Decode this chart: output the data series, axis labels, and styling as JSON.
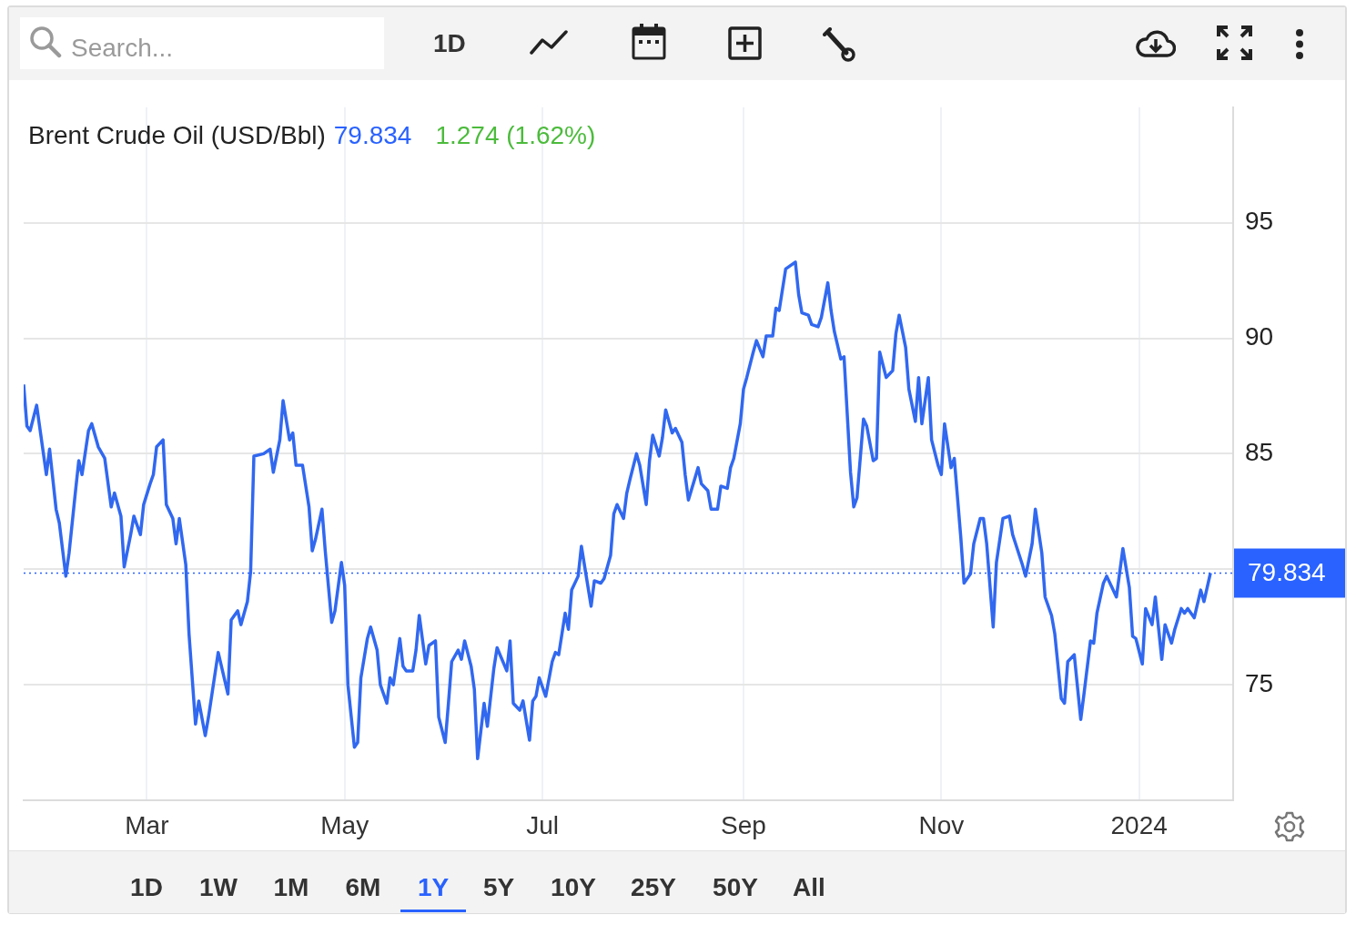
{
  "chart_data": {
    "type": "line",
    "title": "Brent Crude Oil (USD/Bbl)",
    "annotations": [
      "79.834",
      "1.274 (1.62%)",
      "Search...",
      "1D",
      "1D",
      "1W",
      "1M",
      "6M",
      "1Y",
      "5Y",
      "10Y",
      "25Y",
      "50Y",
      "All"
    ],
    "x": [
      "2023-01-22",
      "2023-01-23",
      "2023-01-24",
      "2023-01-26",
      "2023-01-27",
      "2023-01-29",
      "2023-01-30",
      "2023-02-01",
      "2023-02-02",
      "2023-02-04",
      "2023-02-05",
      "2023-02-07",
      "2023-02-08",
      "2023-02-09",
      "2023-02-11",
      "2023-02-12",
      "2023-02-14",
      "2023-02-16",
      "2023-02-18",
      "2023-02-19",
      "2023-02-21",
      "2023-02-22",
      "2023-02-24",
      "2023-02-25",
      "2023-02-27",
      "2023-02-28",
      "2023-03-02",
      "2023-03-03",
      "2023-03-04",
      "2023-03-06",
      "2023-03-07",
      "2023-03-09",
      "2023-03-10",
      "2023-03-11",
      "2023-03-13",
      "2023-03-14",
      "2023-03-16",
      "2023-03-17",
      "2023-03-19",
      "2023-03-20",
      "2023-03-23",
      "2023-03-26",
      "2023-03-27",
      "2023-03-29",
      "2023-03-30",
      "2023-04-01",
      "2023-04-02",
      "2023-04-03",
      "2023-04-06",
      "2023-04-08",
      "2023-04-09",
      "2023-04-11",
      "2023-04-12",
      "2023-04-14",
      "2023-04-15",
      "2023-04-16",
      "2023-04-18",
      "2023-04-20",
      "2023-04-21",
      "2023-04-22",
      "2023-04-24",
      "2023-04-25",
      "2023-04-27",
      "2023-04-28",
      "2023-04-30",
      "2023-05-01",
      "2023-05-02",
      "2023-05-04",
      "2023-05-05",
      "2023-05-06",
      "2023-05-08",
      "2023-05-09",
      "2023-05-11",
      "2023-05-12",
      "2023-05-14",
      "2023-05-15",
      "2023-05-16",
      "2023-05-18",
      "2023-05-19",
      "2023-05-20",
      "2023-05-22",
      "2023-05-23",
      "2023-05-24",
      "2023-05-26",
      "2023-05-27",
      "2023-05-29",
      "2023-05-30",
      "2023-06-01",
      "2023-06-02",
      "2023-06-03",
      "2023-06-05",
      "2023-06-06",
      "2023-06-07",
      "2023-06-09",
      "2023-06-10",
      "2023-06-11",
      "2023-06-13",
      "2023-06-14",
      "2023-06-16",
      "2023-06-17",
      "2023-06-20",
      "2023-06-21",
      "2023-06-22",
      "2023-06-24",
      "2023-06-25",
      "2023-06-27",
      "2023-06-28",
      "2023-06-29",
      "2023-06-30",
      "2023-07-02",
      "2023-07-04",
      "2023-07-05",
      "2023-07-06",
      "2023-07-08",
      "2023-07-09",
      "2023-07-10",
      "2023-07-12",
      "2023-07-13",
      "2023-07-16",
      "2023-07-17",
      "2023-07-19",
      "2023-07-20",
      "2023-07-22",
      "2023-07-23",
      "2023-07-24",
      "2023-07-26",
      "2023-07-27",
      "2023-07-28",
      "2023-07-30",
      "2023-07-31",
      "2023-08-02",
      "2023-08-03",
      "2023-08-04",
      "2023-08-06",
      "2023-08-07",
      "2023-08-08",
      "2023-08-10",
      "2023-08-11",
      "2023-08-13",
      "2023-08-14",
      "2023-08-15",
      "2023-08-18",
      "2023-08-19",
      "2023-08-21",
      "2023-08-22",
      "2023-08-24",
      "2023-08-25",
      "2023-08-27",
      "2023-08-28",
      "2023-08-29",
      "2023-08-31",
      "2023-09-01",
      "2023-09-02",
      "2023-09-04",
      "2023-09-05",
      "2023-09-07",
      "2023-09-08",
      "2023-09-10",
      "2023-09-11",
      "2023-09-12",
      "2023-09-14",
      "2023-09-15",
      "2023-09-17",
      "2023-09-18",
      "2023-09-19",
      "2023-09-21",
      "2023-09-22",
      "2023-09-24",
      "2023-09-25",
      "2023-09-27",
      "2023-09-28",
      "2023-09-29",
      "2023-10-01",
      "2023-10-02",
      "2023-10-04",
      "2023-10-05",
      "2023-10-06",
      "2023-10-08",
      "2023-10-09",
      "2023-10-11",
      "2023-10-12",
      "2023-10-13",
      "2023-10-15",
      "2023-10-17",
      "2023-10-18",
      "2023-10-19",
      "2023-10-21",
      "2023-10-22",
      "2023-10-24",
      "2023-10-25",
      "2023-10-26",
      "2023-10-28",
      "2023-10-29",
      "2023-10-31",
      "2023-11-01",
      "2023-11-02",
      "2023-11-04",
      "2023-11-05",
      "2023-11-07",
      "2023-11-08",
      "2023-11-10",
      "2023-11-11",
      "2023-11-13",
      "2023-11-14",
      "2023-11-15",
      "2023-11-17",
      "2023-11-18",
      "2023-11-20",
      "2023-11-22",
      "2023-11-23",
      "2023-11-26",
      "2023-11-27",
      "2023-11-29",
      "2023-11-30",
      "2023-12-02",
      "2023-12-03",
      "2023-12-05",
      "2023-12-06",
      "2023-12-08",
      "2023-12-09",
      "2023-12-10",
      "2023-12-12",
      "2023-12-14",
      "2023-12-15",
      "2023-12-17",
      "2023-12-18",
      "2023-12-19",
      "2023-12-21",
      "2023-12-22",
      "2023-12-24",
      "2023-12-25",
      "2023-12-27",
      "2023-12-29",
      "2023-12-30",
      "2023-12-31",
      "2024-01-02",
      "2024-01-03",
      "2024-01-05",
      "2024-01-06",
      "2024-01-08",
      "2024-01-09",
      "2024-01-11",
      "2024-01-12",
      "2024-01-14",
      "2024-01-15",
      "2024-01-16",
      "2024-01-18",
      "2024-01-20",
      "2024-01-21",
      "2024-01-23"
    ],
    "values": [
      88.0,
      86.2,
      86.0,
      87.1,
      86.1,
      84.1,
      85.2,
      82.6,
      82.0,
      79.7,
      80.7,
      83.4,
      84.7,
      84.1,
      86.0,
      86.3,
      85.3,
      84.8,
      82.7,
      83.3,
      82.3,
      80.1,
      81.5,
      82.3,
      81.5,
      82.8,
      83.7,
      84.1,
      85.3,
      85.6,
      82.8,
      82.2,
      81.1,
      82.2,
      80.2,
      77.2,
      73.3,
      74.3,
      72.8,
      73.6,
      76.4,
      74.6,
      77.8,
      78.2,
      77.6,
      78.6,
      79.9,
      84.9,
      85.0,
      85.2,
      84.2,
      85.6,
      87.3,
      85.6,
      85.9,
      84.5,
      84.5,
      82.7,
      80.8,
      81.3,
      82.6,
      80.8,
      77.7,
      78.2,
      80.3,
      79.3,
      75.0,
      72.3,
      72.5,
      75.3,
      77.0,
      77.5,
      76.5,
      75.0,
      74.2,
      75.3,
      75.0,
      77.0,
      75.8,
      75.6,
      75.6,
      76.5,
      78.0,
      75.9,
      76.7,
      76.9,
      73.6,
      72.5,
      74.2,
      76.0,
      76.5,
      76.1,
      76.9,
      75.8,
      74.8,
      71.8,
      74.2,
      73.2,
      75.7,
      76.6,
      75.6,
      76.9,
      74.2,
      73.9,
      74.3,
      72.6,
      74.3,
      74.5,
      75.3,
      74.5,
      76.0,
      76.4,
      76.3,
      78.1,
      77.4,
      79.1,
      79.7,
      81.0,
      78.4,
      79.5,
      79.4,
      79.6,
      80.6,
      82.4,
      82.8,
      82.2,
      83.3,
      83.9,
      85.0,
      84.5,
      82.8,
      84.7,
      85.8,
      84.9,
      85.7,
      86.9,
      85.9,
      86.1,
      85.5,
      84.1,
      83.0,
      84.4,
      83.7,
      83.4,
      82.6,
      82.6,
      83.6,
      83.5,
      84.4,
      84.8,
      86.3,
      87.8,
      88.3,
      89.4,
      89.9,
      89.2,
      90.1,
      90.1,
      91.3,
      91.2,
      93.0,
      93.1,
      93.3,
      91.9,
      91.1,
      91.0,
      90.6,
      90.5,
      90.9,
      92.4,
      91.2,
      90.3,
      89.1,
      89.2,
      84.2,
      82.7,
      83.1,
      86.5,
      86.2,
      84.7,
      84.8,
      89.4,
      88.3,
      88.6,
      90.2,
      91.0,
      89.6,
      87.8,
      86.4,
      88.3,
      86.3,
      88.3,
      85.6,
      84.5,
      84.1,
      86.3,
      84.4,
      84.8,
      81.4,
      79.4,
      79.8,
      81.1,
      82.2,
      82.2,
      81.1,
      77.5,
      80.3,
      82.2,
      82.3,
      81.5,
      80.2,
      79.7,
      81.1,
      82.6,
      80.7,
      78.8,
      78.0,
      77.2,
      74.4,
      74.2,
      76.0,
      76.3,
      73.5,
      74.6,
      76.9,
      76.8,
      78.1,
      79.4,
      79.7,
      79.1,
      78.8,
      80.9,
      79.2,
      77.1,
      77.0,
      75.9,
      78.3,
      77.6,
      78.8,
      76.1,
      77.6,
      76.8,
      77.4,
      78.3,
      78.1,
      78.3,
      77.9,
      79.1,
      78.6,
      79.834
    ],
    "color": "#3168f0",
    "xlim": [
      "2023-01-22",
      "2024-01-30"
    ],
    "xticks": [
      {
        "value": "2023-03-01",
        "label": "Mar"
      },
      {
        "value": "2023-05-01",
        "label": "May"
      },
      {
        "value": "2023-07-01",
        "label": "Jul"
      },
      {
        "value": "2023-09-01",
        "label": "Sep"
      },
      {
        "value": "2023-11-01",
        "label": "Nov"
      },
      {
        "value": "2024-01-01",
        "label": "2024"
      }
    ],
    "ylim": [
      70,
      100
    ],
    "yticks": [
      75,
      {
        "value": 80,
        "label": null
      },
      85,
      90,
      95
    ],
    "grid": true,
    "marker": "none",
    "ref_lines": [
      {
        "axis": "y",
        "value": 79.834,
        "label": "79.834",
        "color": "#2962ff",
        "line_style": "dotted"
      }
    ]
  }
}
